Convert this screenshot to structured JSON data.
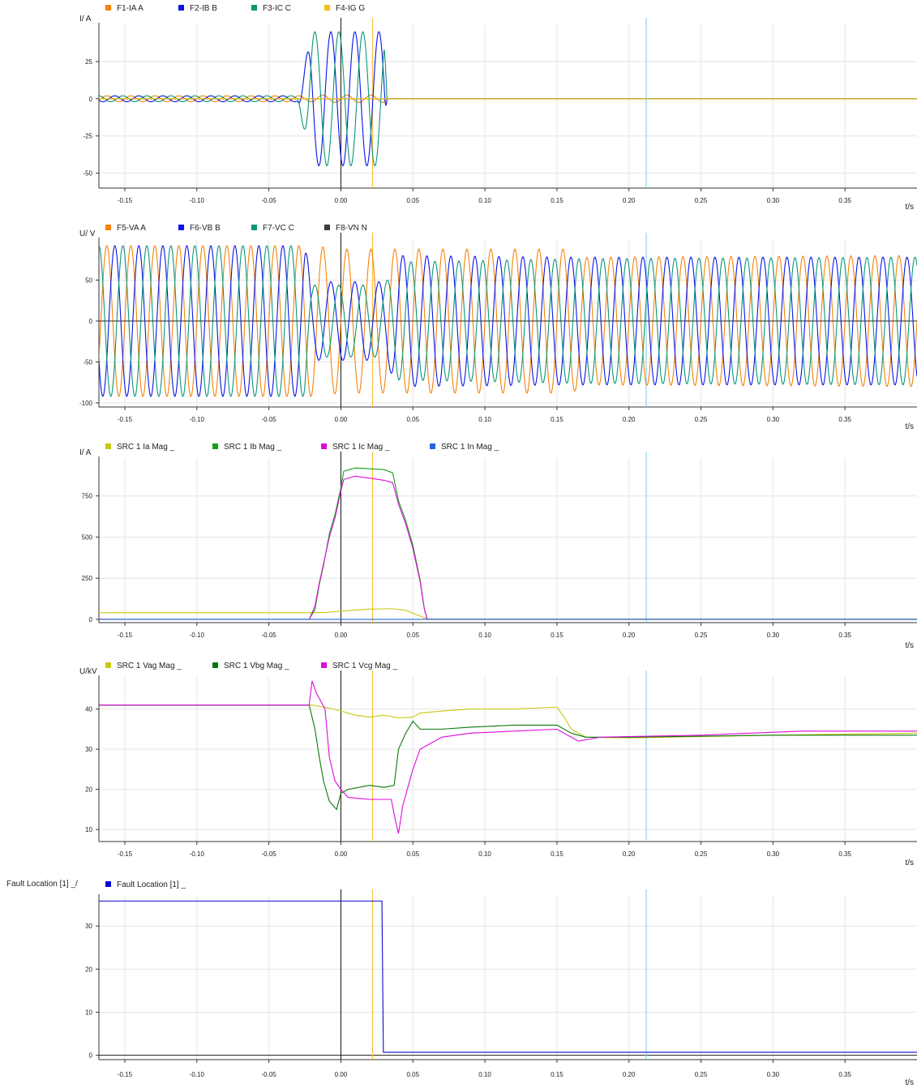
{
  "colors": {
    "orange": "#f5820a",
    "blue": "#0a14e6",
    "teal": "#0a9678",
    "gold": "#f5be14",
    "dark": "#3c3c3c",
    "olive": "#c8c814",
    "green": "#14a014",
    "magenta": "#dc0adc",
    "steel": "#2864dc",
    "darkgreen": "#0a780a",
    "navy": "#0a0ad2",
    "cursor_yellow": "#f5c040",
    "cursor_blue": "#8cd2f0",
    "grid": "#e4e4e4"
  },
  "x_axis": {
    "label": "t/s",
    "range": [
      -0.168,
      0.4
    ],
    "ticks": [
      -0.15,
      -0.1,
      -0.05,
      0.0,
      0.05,
      0.1,
      0.15,
      0.2,
      0.25,
      0.3,
      0.35
    ],
    "tick_labels": [
      "-0.15",
      "-0.10",
      "-0.05",
      "0.00",
      "0.05",
      "0.10",
      "0.15",
      "0.20",
      "0.25",
      "0.30",
      "0.35"
    ]
  },
  "cursors": [
    {
      "t": 0.022,
      "color": "cursor_yellow"
    },
    {
      "t": 0.212,
      "color": "cursor_blue"
    }
  ],
  "chart_data": [
    {
      "type": "line",
      "ylabel": "I/ A",
      "ylim": [
        -60,
        50
      ],
      "yticks": [
        -50,
        -25,
        0,
        25
      ],
      "legend": [
        {
          "name": "F1-IA A",
          "color": "orange"
        },
        {
          "name": "F2-IB B",
          "color": "blue"
        },
        {
          "name": "F3-IC C",
          "color": "teal"
        },
        {
          "name": "F4-IG G",
          "color": "gold"
        }
      ],
      "series": [
        {
          "name": "F1-IA A",
          "color": "orange",
          "kind": "sine",
          "freq": 60,
          "phase": 0,
          "amp": [
            [
              -0.168,
              2
            ],
            [
              -0.02,
              2
            ],
            [
              -0.019,
              2.5
            ],
            [
              0.03,
              2.5
            ],
            [
              0.031,
              0
            ],
            [
              0.4,
              0
            ]
          ]
        },
        {
          "name": "F2-IB B",
          "color": "blue",
          "kind": "sine",
          "freq": 60,
          "phase": -120,
          "amp": [
            [
              -0.168,
              2
            ],
            [
              -0.03,
              2
            ],
            [
              -0.02,
              45
            ],
            [
              0.03,
              45
            ],
            [
              0.032,
              0
            ],
            [
              0.4,
              0
            ]
          ]
        },
        {
          "name": "F3-IC C",
          "color": "teal",
          "kind": "sine",
          "freq": 60,
          "phase": 120,
          "amp": [
            [
              -0.168,
              2
            ],
            [
              -0.03,
              2
            ],
            [
              -0.02,
              45
            ],
            [
              0.03,
              45
            ],
            [
              0.032,
              0
            ],
            [
              0.4,
              0
            ]
          ]
        },
        {
          "name": "F4-IG G",
          "color": "gold",
          "kind": "sine",
          "freq": 60,
          "phase": 60,
          "amp": [
            [
              -0.168,
              0
            ],
            [
              0.4,
              0
            ]
          ]
        }
      ]
    },
    {
      "type": "line",
      "ylabel": "U/ V",
      "ylim": [
        -105,
        100
      ],
      "yticks": [
        -100,
        -50,
        0,
        50
      ],
      "legend": [
        {
          "name": "F5-VA A",
          "color": "orange"
        },
        {
          "name": "F6-VB B",
          "color": "blue"
        },
        {
          "name": "F7-VC C",
          "color": "teal"
        },
        {
          "name": "F8-VN N",
          "color": "dark"
        }
      ],
      "series": [
        {
          "name": "F5-VA A",
          "color": "orange",
          "kind": "sine",
          "freq": 60,
          "phase": 0,
          "amp": [
            [
              -0.168,
              92
            ],
            [
              -0.02,
              92
            ],
            [
              0.0,
              88
            ],
            [
              0.16,
              88
            ],
            [
              0.17,
              78
            ],
            [
              0.4,
              80
            ]
          ]
        },
        {
          "name": "F6-VB B",
          "color": "blue",
          "kind": "sine",
          "freq": 60,
          "phase": -120,
          "amp": [
            [
              -0.168,
              92
            ],
            [
              -0.025,
              92
            ],
            [
              -0.02,
              48
            ],
            [
              0.03,
              48
            ],
            [
              0.04,
              80
            ],
            [
              0.16,
              78
            ],
            [
              0.4,
              78
            ]
          ]
        },
        {
          "name": "F7-VC C",
          "color": "teal",
          "kind": "sine",
          "freq": 60,
          "phase": 120,
          "amp": [
            [
              -0.168,
              92
            ],
            [
              -0.025,
              92
            ],
            [
              -0.02,
              44
            ],
            [
              0.03,
              44
            ],
            [
              0.04,
              72
            ],
            [
              0.16,
              76
            ],
            [
              0.4,
              78
            ]
          ]
        },
        {
          "name": "F8-VN N",
          "color": "dark",
          "kind": "sine",
          "freq": 60,
          "phase": 0,
          "amp": [
            [
              -0.168,
              0
            ],
            [
              0.4,
              0
            ]
          ]
        }
      ]
    },
    {
      "type": "line",
      "ylabel": "I/ A",
      "ylim": [
        -20,
        980
      ],
      "yticks": [
        0,
        250,
        500,
        750
      ],
      "legend": [
        {
          "name": "SRC 1  Ia Mag _",
          "color": "olive"
        },
        {
          "name": "SRC 1  Ib Mag _",
          "color": "green"
        },
        {
          "name": "SRC 1  Ic Mag _",
          "color": "magenta"
        },
        {
          "name": "SRC 1  In Mag _",
          "color": "steel"
        }
      ],
      "series": [
        {
          "name": "SRC 1  Ia Mag _",
          "color": "olive",
          "kind": "points",
          "points": [
            [
              -0.168,
              40
            ],
            [
              -0.02,
              40
            ],
            [
              -0.01,
              42
            ],
            [
              0.0,
              50
            ],
            [
              0.02,
              62
            ],
            [
              0.035,
              65
            ],
            [
              0.045,
              55
            ],
            [
              0.055,
              20
            ],
            [
              0.06,
              2
            ],
            [
              0.4,
              2
            ]
          ]
        },
        {
          "name": "SRC 1  Ib Mag _",
          "color": "green",
          "kind": "points",
          "points": [
            [
              -0.168,
              0
            ],
            [
              -0.022,
              0
            ],
            [
              -0.018,
              60
            ],
            [
              -0.015,
              210
            ],
            [
              -0.012,
              330
            ],
            [
              -0.008,
              520
            ],
            [
              -0.004,
              640
            ],
            [
              0.0,
              800
            ],
            [
              0.002,
              900
            ],
            [
              0.01,
              920
            ],
            [
              0.03,
              910
            ],
            [
              0.036,
              890
            ],
            [
              0.04,
              720
            ],
            [
              0.045,
              600
            ],
            [
              0.05,
              450
            ],
            [
              0.055,
              240
            ],
            [
              0.058,
              60
            ],
            [
              0.06,
              0
            ],
            [
              0.4,
              0
            ]
          ]
        },
        {
          "name": "SRC 1  Ic Mag _",
          "color": "magenta",
          "kind": "points",
          "points": [
            [
              -0.168,
              0
            ],
            [
              -0.022,
              0
            ],
            [
              -0.018,
              80
            ],
            [
              -0.015,
              220
            ],
            [
              -0.012,
              340
            ],
            [
              -0.008,
              500
            ],
            [
              -0.004,
              620
            ],
            [
              0.0,
              780
            ],
            [
              0.002,
              850
            ],
            [
              0.01,
              870
            ],
            [
              0.03,
              845
            ],
            [
              0.036,
              830
            ],
            [
              0.04,
              700
            ],
            [
              0.045,
              580
            ],
            [
              0.05,
              430
            ],
            [
              0.055,
              230
            ],
            [
              0.058,
              60
            ],
            [
              0.06,
              0
            ],
            [
              0.4,
              0
            ]
          ]
        },
        {
          "name": "SRC 1  In Mag _",
          "color": "steel",
          "kind": "points",
          "points": [
            [
              -0.168,
              0
            ],
            [
              0.4,
              0
            ]
          ]
        }
      ]
    },
    {
      "type": "line",
      "ylabel": "U/kV",
      "ylim": [
        7,
        48
      ],
      "yticks": [
        10,
        20,
        30,
        40
      ],
      "legend": [
        {
          "name": "SRC 1  Vag Mag _",
          "color": "olive"
        },
        {
          "name": "SRC 1  Vbg Mag _",
          "color": "darkgreen"
        },
        {
          "name": "SRC 1  Vcg Mag _",
          "color": "magenta"
        }
      ],
      "series": [
        {
          "name": "SRC 1  Vag Mag _",
          "color": "olive",
          "kind": "points",
          "points": [
            [
              -0.168,
              41
            ],
            [
              -0.02,
              41
            ],
            [
              -0.012,
              40.5
            ],
            [
              -0.005,
              40
            ],
            [
              0.005,
              39
            ],
            [
              0.01,
              38.5
            ],
            [
              0.02,
              38
            ],
            [
              0.03,
              38.5
            ],
            [
              0.04,
              37.8
            ],
            [
              0.05,
              38
            ],
            [
              0.055,
              39
            ],
            [
              0.07,
              39.5
            ],
            [
              0.09,
              40
            ],
            [
              0.12,
              40
            ],
            [
              0.15,
              40.5
            ],
            [
              0.155,
              38
            ],
            [
              0.16,
              35
            ],
            [
              0.17,
              33
            ],
            [
              0.2,
              32.8
            ],
            [
              0.3,
              33.5
            ],
            [
              0.4,
              34
            ]
          ]
        },
        {
          "name": "SRC 1  Vbg Mag _",
          "color": "darkgreen",
          "kind": "points",
          "points": [
            [
              -0.168,
              41
            ],
            [
              -0.022,
              41
            ],
            [
              -0.018,
              35
            ],
            [
              -0.015,
              28
            ],
            [
              -0.012,
              22
            ],
            [
              -0.008,
              17
            ],
            [
              -0.003,
              15
            ],
            [
              0.0,
              19
            ],
            [
              0.005,
              20
            ],
            [
              0.02,
              21
            ],
            [
              0.03,
              20.5
            ],
            [
              0.037,
              21
            ],
            [
              0.04,
              30
            ],
            [
              0.045,
              34
            ],
            [
              0.05,
              37
            ],
            [
              0.055,
              35
            ],
            [
              0.07,
              35
            ],
            [
              0.09,
              35.5
            ],
            [
              0.12,
              36
            ],
            [
              0.15,
              36
            ],
            [
              0.16,
              34
            ],
            [
              0.17,
              33
            ],
            [
              0.2,
              33
            ],
            [
              0.3,
              33.5
            ],
            [
              0.4,
              33.5
            ]
          ]
        },
        {
          "name": "SRC 1  Vcg Mag _",
          "color": "magenta",
          "kind": "points",
          "points": [
            [
              -0.168,
              41
            ],
            [
              -0.022,
              41
            ],
            [
              -0.02,
              47
            ],
            [
              -0.017,
              44
            ],
            [
              -0.014,
              42
            ],
            [
              -0.011,
              40
            ],
            [
              -0.008,
              28
            ],
            [
              -0.004,
              22
            ],
            [
              0.0,
              20
            ],
            [
              0.005,
              18
            ],
            [
              0.02,
              17.5
            ],
            [
              0.035,
              17.5
            ],
            [
              0.038,
              12
            ],
            [
              0.04,
              9
            ],
            [
              0.043,
              16
            ],
            [
              0.05,
              25
            ],
            [
              0.055,
              30
            ],
            [
              0.07,
              33
            ],
            [
              0.09,
              34
            ],
            [
              0.12,
              34.5
            ],
            [
              0.15,
              35
            ],
            [
              0.16,
              33
            ],
            [
              0.165,
              32
            ],
            [
              0.18,
              33
            ],
            [
              0.25,
              33.5
            ],
            [
              0.32,
              34.5
            ],
            [
              0.4,
              34.5
            ]
          ]
        }
      ]
    },
    {
      "type": "line",
      "ylabel": "Fault Location [1] _/",
      "ylim": [
        -1,
        37
      ],
      "yticks": [
        0,
        10,
        20,
        30
      ],
      "legend": [
        {
          "name": "Fault Location [1] _",
          "color": "navy"
        }
      ],
      "series": [
        {
          "name": "Fault Location [1] _",
          "color": "navy",
          "kind": "points",
          "points": [
            [
              -0.168,
              35.8
            ],
            [
              0.0285,
              35.8
            ],
            [
              0.0295,
              0.7
            ],
            [
              0.4,
              0.7
            ]
          ]
        }
      ]
    }
  ]
}
